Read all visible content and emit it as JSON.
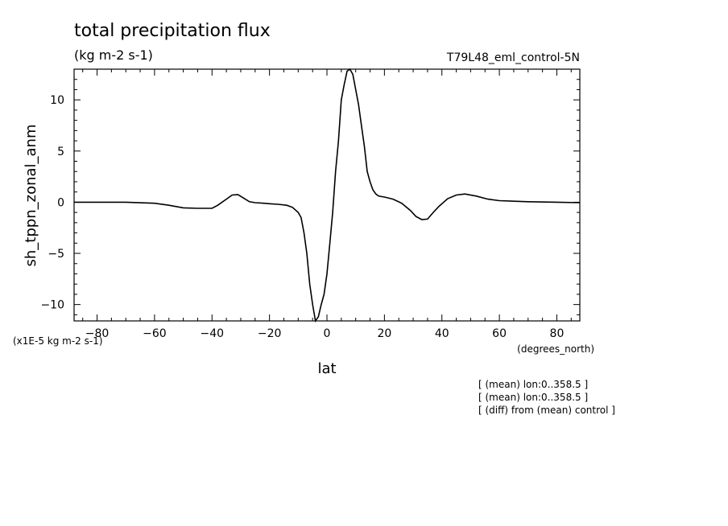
{
  "chart_data": {
    "type": "line",
    "title": "total precipitation flux",
    "units": "(kg m-2 s-1)",
    "run_label": "T79L48_eml_control-5N",
    "xlabel": "lat",
    "xunits": "(degrees_north)",
    "ylabel": "sh_tppn_zonal_anm",
    "yscale_label": "(x1E-5 kg m-2 s-1)",
    "xlim": [
      -88,
      88
    ],
    "ylim": [
      -11.6,
      13
    ],
    "x_ticks": [
      -80,
      -60,
      -40,
      -20,
      0,
      20,
      40,
      60,
      80
    ],
    "y_ticks": [
      -10,
      -5,
      0,
      5,
      10
    ],
    "grid": false,
    "series": [
      {
        "x": [
          -88,
          -80,
          -70,
          -60,
          -55,
          -50,
          -45,
          -40,
          -38,
          -35,
          -33,
          -31,
          -29,
          -27,
          -25,
          -22,
          -20,
          -17,
          -14,
          -12,
          -10,
          -9,
          -8,
          -7,
          -6,
          -5,
          -4,
          -3,
          -2,
          -1,
          0,
          1,
          2,
          3,
          4,
          5,
          6,
          7,
          8,
          9,
          10,
          11,
          12,
          13,
          14,
          15,
          16,
          17,
          18,
          20,
          23,
          26,
          29,
          31,
          33,
          35,
          37,
          39,
          42,
          45,
          48,
          52,
          56,
          60,
          70,
          80,
          88
        ],
        "y": [
          0,
          0,
          0,
          -0.1,
          -0.3,
          -0.55,
          -0.6,
          -0.6,
          -0.3,
          0.3,
          0.7,
          0.75,
          0.4,
          0.05,
          -0.05,
          -0.1,
          -0.15,
          -0.2,
          -0.3,
          -0.5,
          -1.0,
          -1.5,
          -3.0,
          -5.0,
          -8.0,
          -10.0,
          -11.6,
          -11.2,
          -10.0,
          -9.0,
          -7.0,
          -4.0,
          -1.0,
          3.0,
          6.0,
          10.0,
          11.5,
          12.8,
          13.0,
          12.5,
          11.0,
          9.5,
          7.5,
          5.5,
          3.0,
          2.0,
          1.2,
          0.8,
          0.6,
          0.5,
          0.3,
          -0.1,
          -0.8,
          -1.4,
          -1.7,
          -1.65,
          -1.0,
          -0.4,
          0.35,
          0.7,
          0.8,
          0.6,
          0.3,
          0.15,
          0.05,
          0.0,
          -0.05
        ]
      }
    ],
    "notes": [
      "[ (mean) lon:0..358.5 ]",
      "[ (mean) lon:0..358.5 ]",
      "[ (diff) from (mean) control ]"
    ]
  }
}
